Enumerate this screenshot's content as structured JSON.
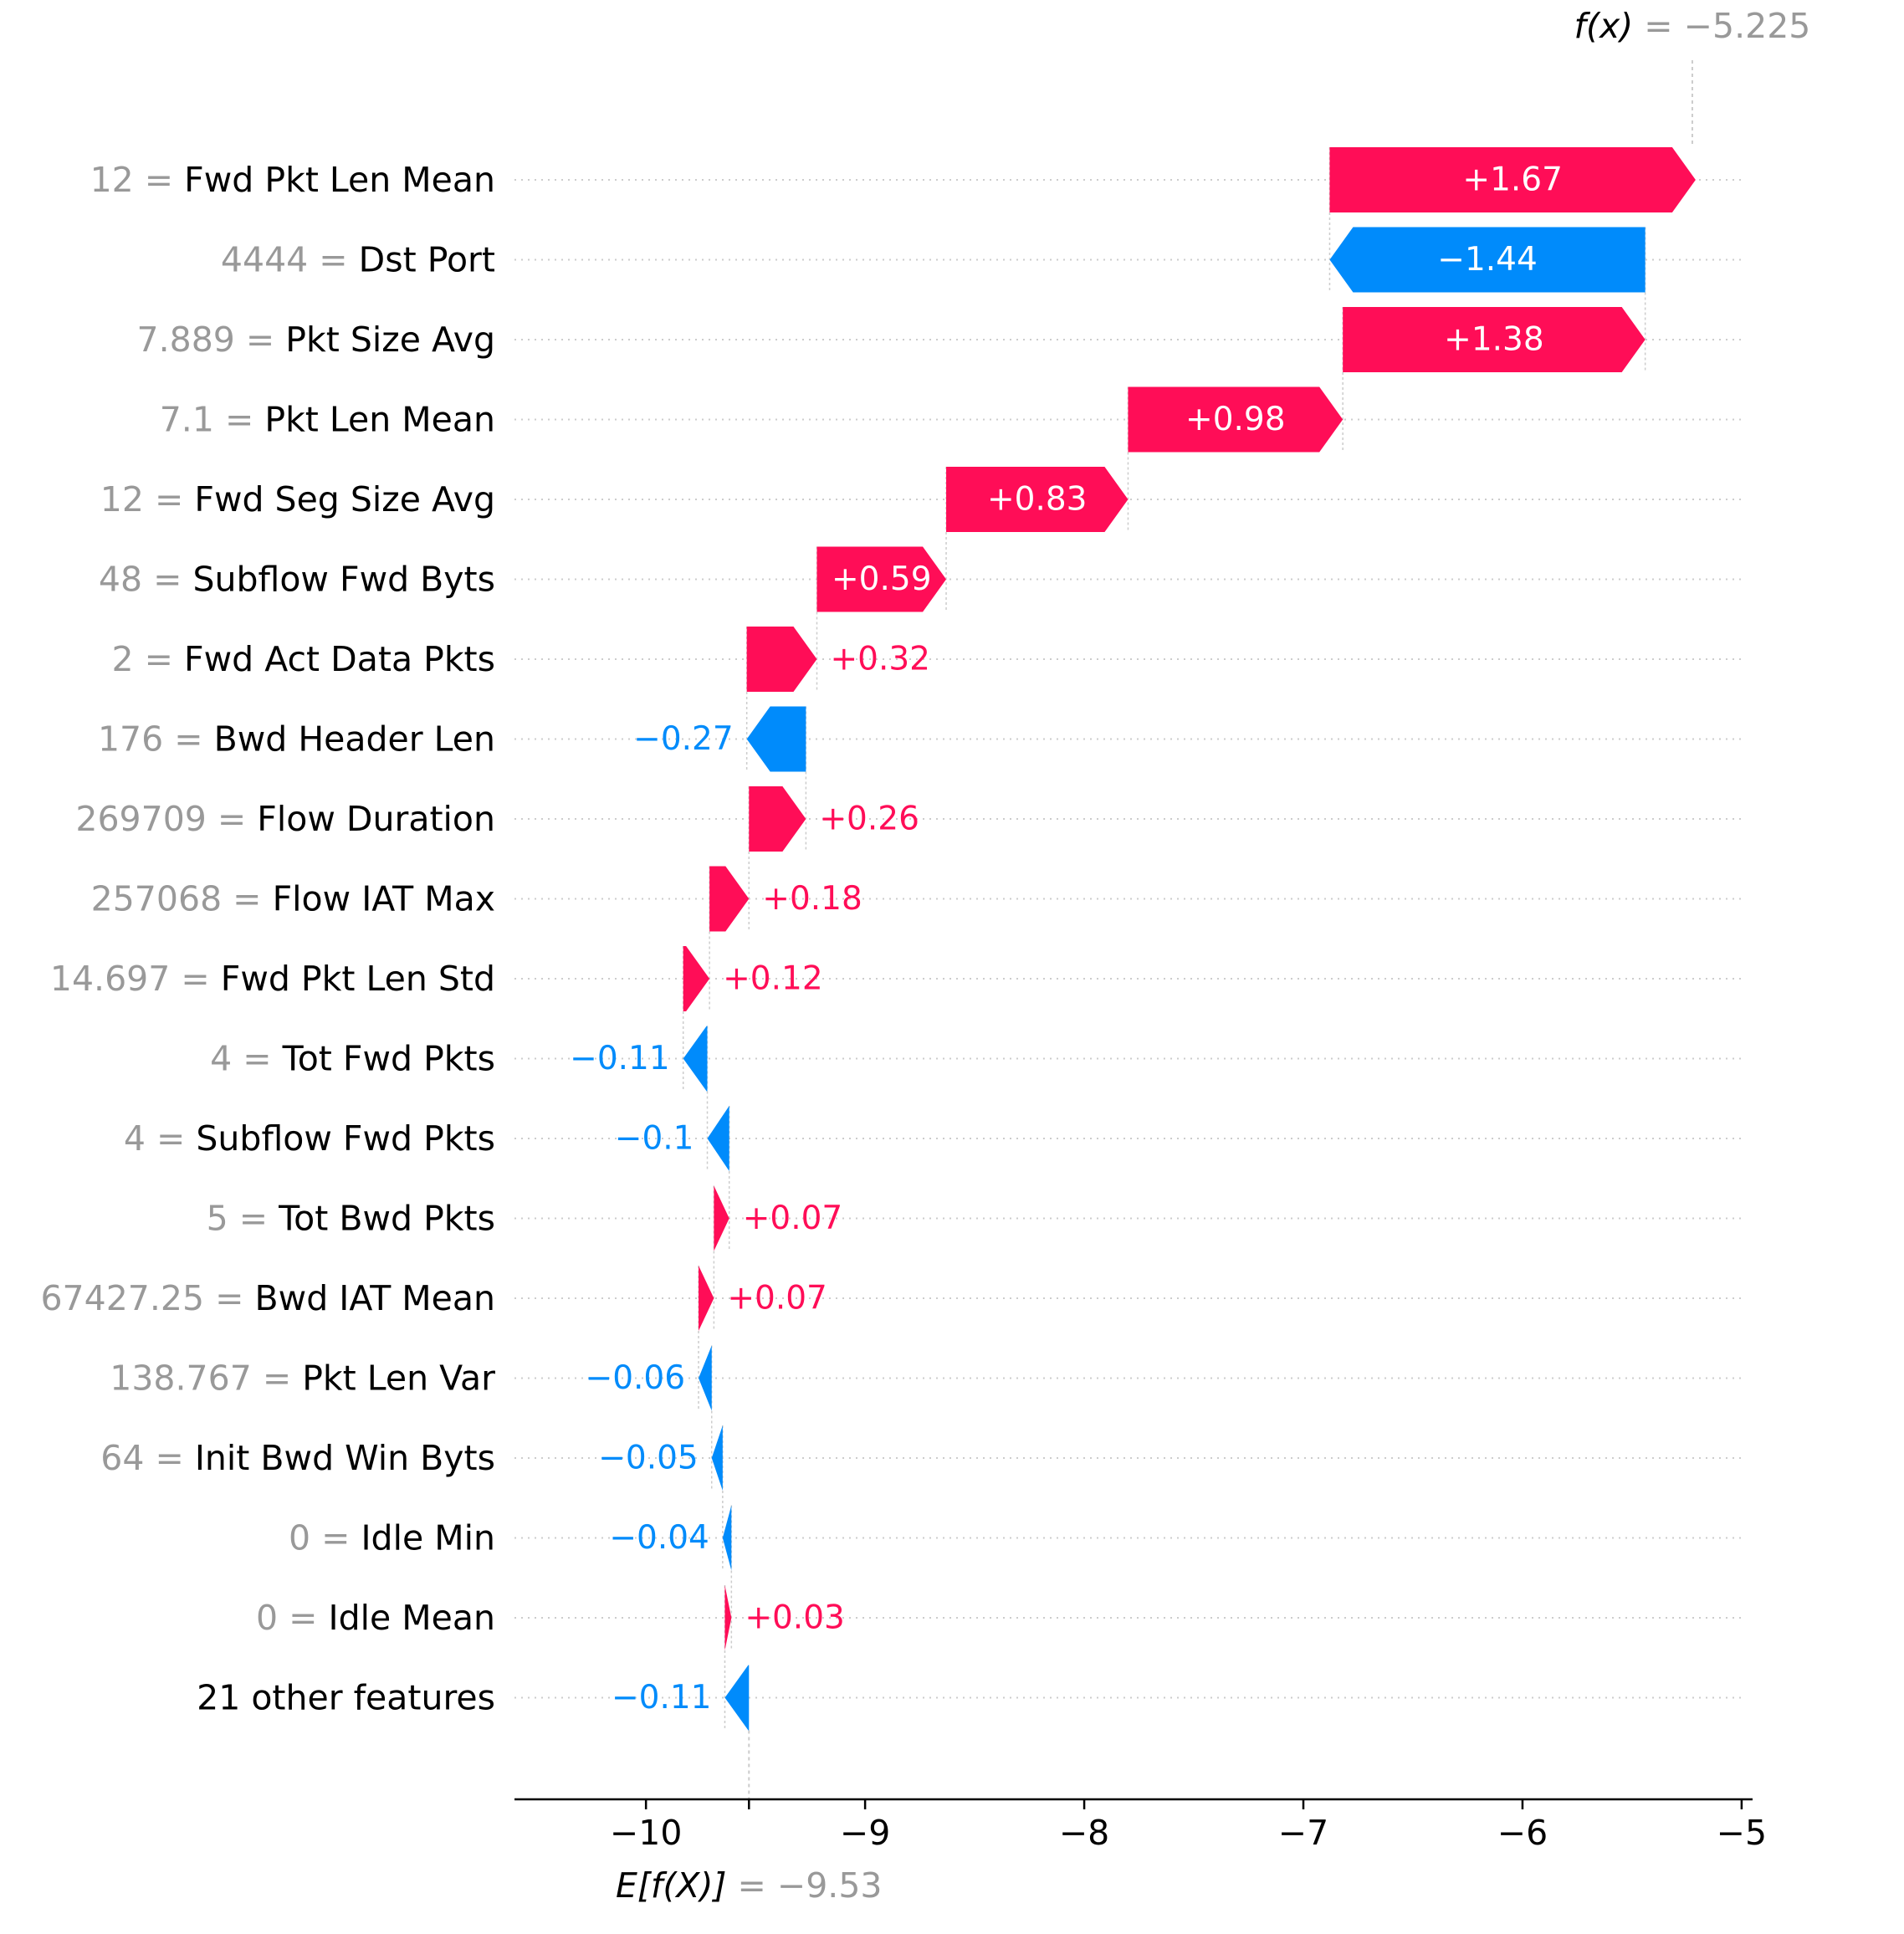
{
  "chart_data": {
    "type": "waterfall",
    "title": "",
    "xlabel": "",
    "ylabel": "",
    "xlim": [
      -10.6,
      -4.95
    ],
    "xticks": [
      -10,
      -9,
      -8,
      -7,
      -6,
      -5
    ],
    "xtick_labels": [
      "−10",
      "−9",
      "−8",
      "−7",
      "−6",
      "−5"
    ],
    "base_value": -9.53,
    "base_label": {
      "math": "E[f(X)]",
      "eq": " = −9.53"
    },
    "final_value": -5.225,
    "final_label": {
      "math": "f(x)",
      "eq": " = −5.225"
    },
    "colors": {
      "positive": "#ff0d57",
      "negative": "#008bfb",
      "guide": "#cccccc",
      "axis": "#000000"
    },
    "features": [
      {
        "value": "12",
        "name": "Fwd Pkt Len Mean",
        "shap": 1.67,
        "label": "+1.67"
      },
      {
        "value": "4444",
        "name": "Dst Port",
        "shap": -1.44,
        "label": "−1.44"
      },
      {
        "value": "7.889",
        "name": "Pkt Size Avg",
        "shap": 1.38,
        "label": "+1.38"
      },
      {
        "value": "7.1",
        "name": "Pkt Len Mean",
        "shap": 0.98,
        "label": "+0.98"
      },
      {
        "value": "12",
        "name": "Fwd Seg Size Avg",
        "shap": 0.83,
        "label": "+0.83"
      },
      {
        "value": "48",
        "name": "Subflow Fwd Byts",
        "shap": 0.59,
        "label": "+0.59"
      },
      {
        "value": "2",
        "name": "Fwd Act Data Pkts",
        "shap": 0.32,
        "label": "+0.32"
      },
      {
        "value": "176",
        "name": "Bwd Header Len",
        "shap": -0.27,
        "label": "−0.27"
      },
      {
        "value": "269709",
        "name": "Flow Duration",
        "shap": 0.26,
        "label": "+0.26"
      },
      {
        "value": "257068",
        "name": "Flow IAT Max",
        "shap": 0.18,
        "label": "+0.18"
      },
      {
        "value": "14.697",
        "name": "Fwd Pkt Len Std",
        "shap": 0.12,
        "label": "+0.12"
      },
      {
        "value": "4",
        "name": "Tot Fwd Pkts",
        "shap": -0.11,
        "label": "−0.11"
      },
      {
        "value": "4",
        "name": "Subflow Fwd Pkts",
        "shap": -0.1,
        "label": "−0.1"
      },
      {
        "value": "5",
        "name": "Tot Bwd Pkts",
        "shap": 0.07,
        "label": "+0.07"
      },
      {
        "value": "67427.25",
        "name": "Bwd IAT Mean",
        "shap": 0.07,
        "label": "+0.07"
      },
      {
        "value": "138.767",
        "name": "Pkt Len Var",
        "shap": -0.06,
        "label": "−0.06"
      },
      {
        "value": "64",
        "name": "Init Bwd Win Byts",
        "shap": -0.05,
        "label": "−0.05"
      },
      {
        "value": "0",
        "name": "Idle Min",
        "shap": -0.04,
        "label": "−0.04"
      },
      {
        "value": "0",
        "name": "Idle Mean",
        "shap": 0.03,
        "label": "+0.03"
      },
      {
        "value": "",
        "name": "21 other features",
        "shap": -0.11,
        "label": "−0.11"
      }
    ]
  }
}
